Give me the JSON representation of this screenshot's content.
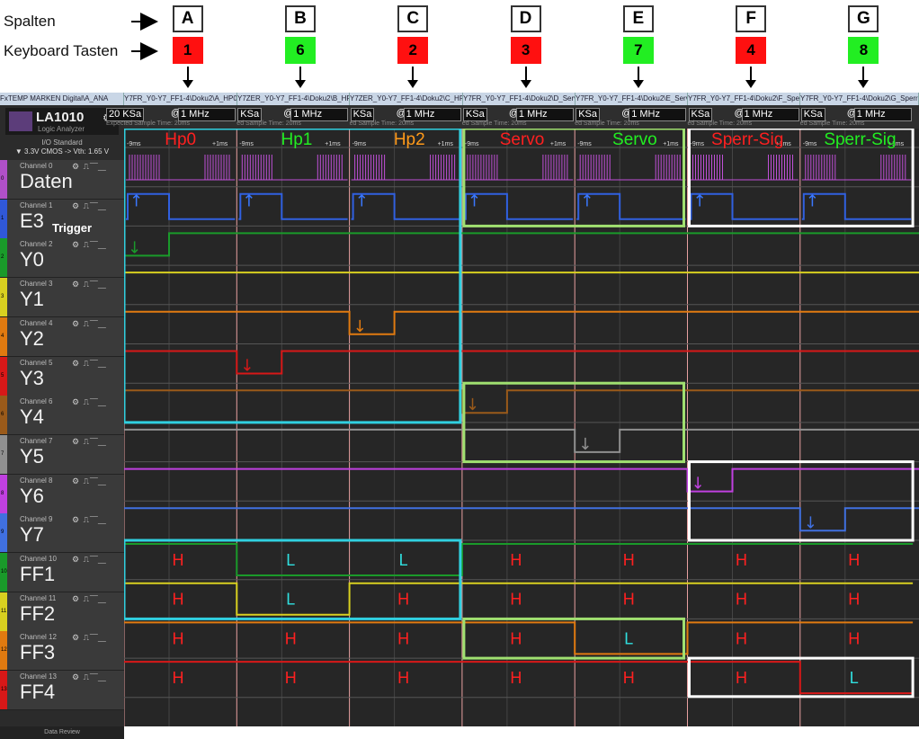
{
  "annotations": {
    "spalten": "Spalten",
    "keyboard": "Keyboard Tasten",
    "trigger": "Trigger"
  },
  "columns": [
    {
      "letter": "A",
      "key": "1",
      "key_color": "#ff1010",
      "title": "Hp0",
      "title_color": "#ff2020"
    },
    {
      "letter": "B",
      "key": "6",
      "key_color": "#22ee22",
      "title": "Hp1",
      "title_color": "#22ee22"
    },
    {
      "letter": "C",
      "key": "2",
      "key_color": "#ff1010",
      "title": "Hp2",
      "title_color": "#ff9a1a"
    },
    {
      "letter": "D",
      "key": "3",
      "key_color": "#ff1010",
      "title": "Servo",
      "title_color": "#ff2020"
    },
    {
      "letter": "E",
      "key": "7",
      "key_color": "#22ee22",
      "title": "Servo",
      "title_color": "#22ee22"
    },
    {
      "letter": "F",
      "key": "4",
      "key_color": "#ff1010",
      "title": "Sperr-Sig",
      "title_color": "#ff2020"
    },
    {
      "letter": "G",
      "key": "8",
      "key_color": "#22ee22",
      "title": "Sperr-Sig",
      "title_color": "#22ee22"
    }
  ],
  "window_titles": [
    "FxTEMP MARKEN Digital\\A_ANA",
    "Y7FR_Y0-Y7_FF1-4\\Doku2\\A_HP0",
    "Y7ZER_Y0-Y7_FF1-4\\Doku2\\B_HP1",
    "Y7ZER_Y0-Y7_FF1-4\\Doku2\\C_HP2",
    "Y7FR_Y0-Y7_FF1-4\\Doku2\\D_Servo",
    "Y7FR_Y0-Y7_FF1-4\\Doku2\\E_Servo",
    "Y7FR_Y0-Y7_FF1-4\\Doku2\\F_Sperr",
    "Y7FR_Y0-Y7_FF1-4\\Doku2\\G_Sperr"
  ],
  "app": {
    "name": "LA1010",
    "subtitle": "Logic Analyzer",
    "io_standard": "I/O Standard",
    "io_value": "▼ 3.3V CMOS -> Vth: 1.65 V",
    "footer": "Data Review"
  },
  "toolbar": {
    "rate_first": "20 KSa",
    "rate": "KSa",
    "freq": "1 MHz",
    "at": "@",
    "sample_text": "Expected Sample Time: 20ms",
    "sample_text_short": "ed Sample Time: 20ms",
    "t_left": "-9ms",
    "t_right": "+1ms"
  },
  "channels": [
    {
      "label": "Channel 0",
      "name": "Daten",
      "color": "#b050c8"
    },
    {
      "label": "Channel 1",
      "name": "E3",
      "color": "#3058d8"
    },
    {
      "label": "Channel 2",
      "name": "Y0",
      "color": "#1a9a2a"
    },
    {
      "label": "Channel 3",
      "name": "Y1",
      "color": "#d8d020"
    },
    {
      "label": "Channel 4",
      "name": "Y2",
      "color": "#e07a10"
    },
    {
      "label": "Channel 5",
      "name": "Y3",
      "color": "#d81818"
    },
    {
      "label": "Channel 6",
      "name": "Y4",
      "color": "#9a5a1a"
    },
    {
      "label": "Channel 7",
      "name": "Y5",
      "color": "#909090"
    },
    {
      "label": "Channel 8",
      "name": "Y6",
      "color": "#c040e0"
    },
    {
      "label": "Channel 9",
      "name": "Y7",
      "color": "#4070e0"
    },
    {
      "label": "Channel 10",
      "name": "FF1",
      "color": "#1a9a2a"
    },
    {
      "label": "Channel 11",
      "name": "FF2",
      "color": "#d8d020"
    },
    {
      "label": "Channel 12",
      "name": "FF3",
      "color": "#e07a10"
    },
    {
      "label": "Channel 13",
      "name": "FF4",
      "color": "#d81818"
    }
  ],
  "states": {
    "FF1": [
      "H",
      "L",
      "L",
      "H",
      "H",
      "H",
      "H"
    ],
    "FF2": [
      "H",
      "L",
      "H",
      "H",
      "H",
      "H",
      "H"
    ],
    "FF3": [
      "H",
      "H",
      "H",
      "H",
      "L",
      "H",
      "H"
    ],
    "FF4": [
      "H",
      "H",
      "H",
      "H",
      "H",
      "H",
      "L"
    ]
  },
  "state_colors": {
    "H": "#ff2020",
    "L": "#30e0e0"
  }
}
